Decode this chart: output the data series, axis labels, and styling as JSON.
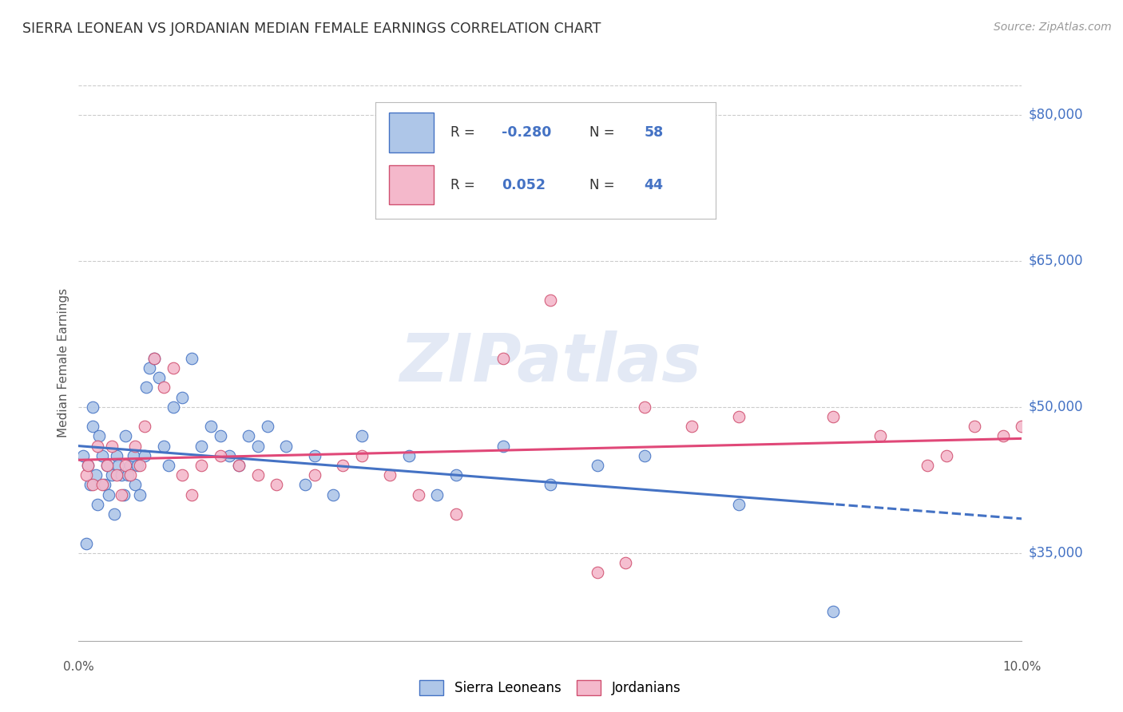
{
  "title": "SIERRA LEONEAN VS JORDANIAN MEDIAN FEMALE EARNINGS CORRELATION CHART",
  "source": "Source: ZipAtlas.com",
  "ylabel": "Median Female Earnings",
  "xmin": 0.0,
  "xmax": 10.0,
  "ymin": 26000,
  "ymax": 83000,
  "yticks": [
    35000,
    50000,
    65000,
    80000
  ],
  "ytick_labels": [
    "$35,000",
    "$50,000",
    "$65,000",
    "$80,000"
  ],
  "watermark": "ZIPatlas",
  "legend_blue_label": "Sierra Leoneans",
  "legend_pink_label": "Jordanians",
  "blue_R": "-0.280",
  "blue_N": "58",
  "pink_R": "0.052",
  "pink_N": "44",
  "blue_fill": "#aec6e8",
  "pink_fill": "#f4b8cb",
  "blue_edge": "#4472c4",
  "pink_edge": "#d05070",
  "blue_line": "#4472c4",
  "pink_line": "#e04878",
  "title_color": "#333333",
  "source_color": "#999999",
  "axis_label_color": "#555555",
  "tick_label_color": "#4472c4",
  "grid_color": "#cccccc",
  "sierra_x": [
    0.05,
    0.08,
    0.1,
    0.12,
    0.15,
    0.15,
    0.18,
    0.2,
    0.22,
    0.25,
    0.28,
    0.3,
    0.32,
    0.35,
    0.38,
    0.4,
    0.42,
    0.45,
    0.48,
    0.5,
    0.52,
    0.55,
    0.58,
    0.6,
    0.62,
    0.65,
    0.7,
    0.72,
    0.75,
    0.8,
    0.85,
    0.9,
    0.95,
    1.0,
    1.1,
    1.2,
    1.3,
    1.4,
    1.5,
    1.6,
    1.7,
    1.8,
    1.9,
    2.0,
    2.2,
    2.4,
    2.5,
    2.7,
    3.0,
    3.5,
    3.8,
    4.0,
    4.5,
    5.0,
    5.5,
    6.0,
    7.0,
    8.0
  ],
  "sierra_y": [
    45000,
    36000,
    44000,
    42000,
    48000,
    50000,
    43000,
    40000,
    47000,
    45000,
    42000,
    44000,
    41000,
    43000,
    39000,
    45000,
    44000,
    43000,
    41000,
    47000,
    43000,
    44000,
    45000,
    42000,
    44000,
    41000,
    45000,
    52000,
    54000,
    55000,
    53000,
    46000,
    44000,
    50000,
    51000,
    55000,
    46000,
    48000,
    47000,
    45000,
    44000,
    47000,
    46000,
    48000,
    46000,
    42000,
    45000,
    41000,
    47000,
    45000,
    41000,
    43000,
    46000,
    42000,
    44000,
    45000,
    40000,
    29000
  ],
  "jordan_x": [
    0.08,
    0.1,
    0.15,
    0.2,
    0.25,
    0.3,
    0.35,
    0.4,
    0.45,
    0.5,
    0.55,
    0.6,
    0.65,
    0.7,
    0.8,
    0.9,
    1.0,
    1.1,
    1.2,
    1.3,
    1.5,
    1.7,
    1.9,
    2.1,
    2.5,
    2.8,
    3.0,
    3.3,
    3.6,
    4.0,
    4.5,
    5.0,
    5.5,
    5.8,
    6.0,
    6.5,
    7.0,
    8.0,
    8.5,
    9.0,
    9.2,
    9.5,
    9.8,
    10.0
  ],
  "jordan_y": [
    43000,
    44000,
    42000,
    46000,
    42000,
    44000,
    46000,
    43000,
    41000,
    44000,
    43000,
    46000,
    44000,
    48000,
    55000,
    52000,
    54000,
    43000,
    41000,
    44000,
    45000,
    44000,
    43000,
    42000,
    43000,
    44000,
    45000,
    43000,
    41000,
    39000,
    55000,
    61000,
    33000,
    34000,
    50000,
    48000,
    49000,
    49000,
    47000,
    44000,
    45000,
    48000,
    47000,
    48000
  ]
}
